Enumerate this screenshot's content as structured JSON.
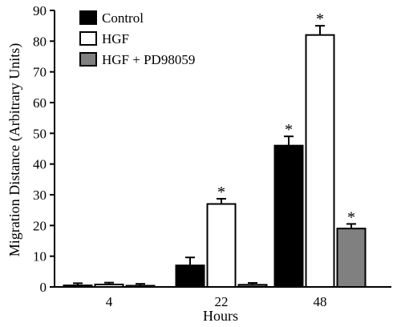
{
  "chart_data": {
    "type": "bar",
    "title": "",
    "xlabel": "Hours",
    "ylabel": "Migration Distance (Arbitrary Units)",
    "categories": [
      "4",
      "22",
      "48"
    ],
    "ylim": [
      0,
      90
    ],
    "yticks": [
      0,
      10,
      20,
      30,
      40,
      50,
      60,
      70,
      80,
      90
    ],
    "grid": false,
    "legend": {
      "placement": "top-left"
    },
    "significance_marker": "*",
    "series": [
      {
        "name": "Control",
        "color": "#000000",
        "values": [
          0.5,
          7,
          46
        ],
        "errors": [
          0.7,
          2.6,
          3
        ],
        "significant": [
          false,
          false,
          true
        ]
      },
      {
        "name": "HGF",
        "color": "#ffffff",
        "values": [
          0.8,
          27,
          82
        ],
        "errors": [
          0.6,
          1.7,
          3
        ],
        "significant": [
          false,
          true,
          true
        ]
      },
      {
        "name": "HGF + PD98059",
        "color": "#808080",
        "values": [
          0.4,
          0.7,
          19
        ],
        "errors": [
          0.6,
          0.6,
          1.5
        ],
        "significant": [
          false,
          false,
          true
        ]
      }
    ]
  }
}
